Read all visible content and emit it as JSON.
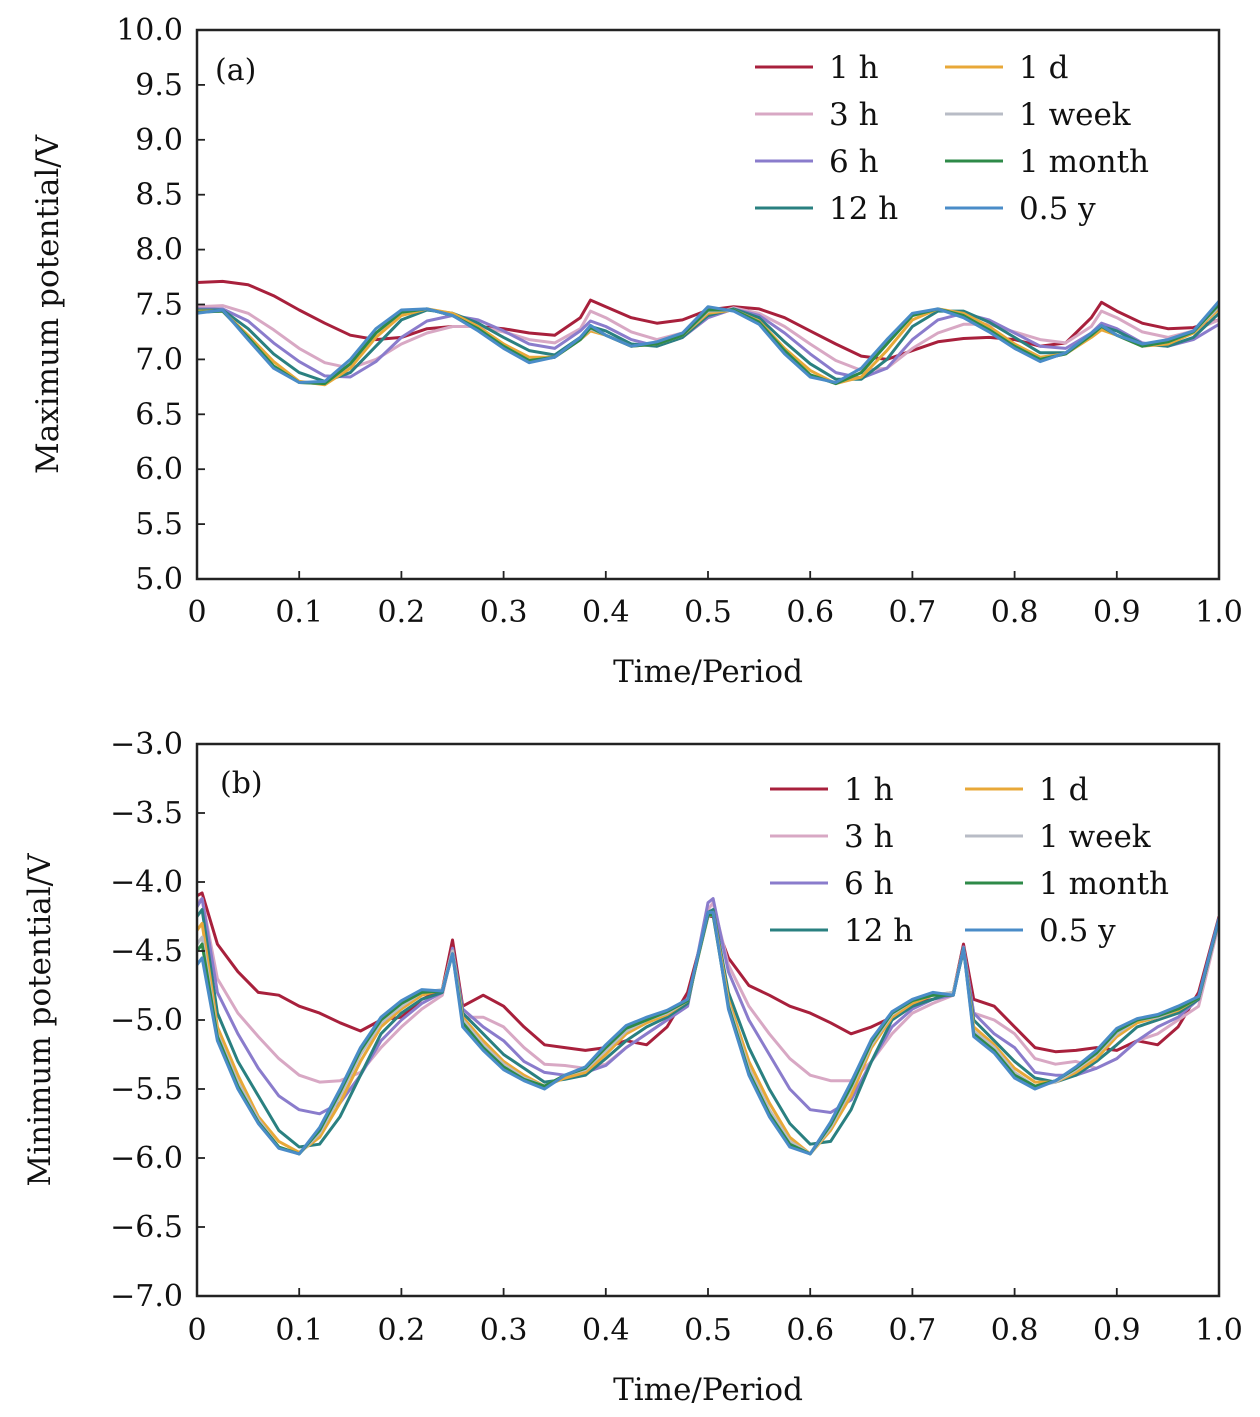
{
  "chart_data": [
    {
      "type": "line",
      "panel_label": "(a)",
      "xlabel": "Time/Period",
      "ylabel": "Maximum potential/V",
      "xlim": [
        0,
        1.0
      ],
      "ylim": [
        5.0,
        10.0
      ],
      "xticks": [
        "0",
        "0.1",
        "0.2",
        "0.3",
        "0.4",
        "0.5",
        "0.6",
        "0.7",
        "0.8",
        "0.9",
        "1.0"
      ],
      "yticks": [
        "5.0",
        "5.5",
        "6.0",
        "6.5",
        "7.0",
        "7.5",
        "8.0",
        "8.5",
        "9.0",
        "9.5",
        "10.0"
      ],
      "legend_position": "top-right",
      "grid": false,
      "x": [
        0,
        0.025,
        0.05,
        0.075,
        0.1,
        0.125,
        0.15,
        0.175,
        0.2,
        0.225,
        0.25,
        0.275,
        0.3,
        0.325,
        0.35,
        0.375,
        0.385,
        0.4,
        0.425,
        0.45,
        0.475,
        0.5,
        0.525,
        0.55,
        0.575,
        0.6,
        0.625,
        0.65,
        0.675,
        0.7,
        0.725,
        0.75,
        0.775,
        0.8,
        0.825,
        0.85,
        0.875,
        0.885,
        0.9,
        0.925,
        0.95,
        0.975,
        1.0
      ],
      "series": [
        {
          "name": "1 h",
          "color": "#a8203c",
          "values": [
            7.7,
            7.71,
            7.68,
            7.58,
            7.45,
            7.33,
            7.22,
            7.18,
            7.2,
            7.28,
            7.3,
            7.3,
            7.28,
            7.24,
            7.22,
            7.38,
            7.54,
            7.48,
            7.38,
            7.33,
            7.36,
            7.45,
            7.48,
            7.46,
            7.38,
            7.26,
            7.14,
            7.03,
            7.0,
            7.08,
            7.16,
            7.19,
            7.2,
            7.18,
            7.12,
            7.15,
            7.38,
            7.52,
            7.44,
            7.33,
            7.28,
            7.29,
            7.36
          ]
        },
        {
          "name": "3 h",
          "color": "#d8a8c4",
          "values": [
            7.48,
            7.49,
            7.42,
            7.27,
            7.1,
            6.97,
            6.92,
            7.0,
            7.14,
            7.24,
            7.3,
            7.3,
            7.25,
            7.18,
            7.15,
            7.28,
            7.44,
            7.38,
            7.25,
            7.18,
            7.24,
            7.4,
            7.47,
            7.42,
            7.3,
            7.14,
            6.99,
            6.9,
            6.92,
            7.1,
            7.24,
            7.32,
            7.32,
            7.25,
            7.18,
            7.15,
            7.3,
            7.44,
            7.38,
            7.25,
            7.2,
            7.26,
            7.36
          ]
        },
        {
          "name": "6 h",
          "color": "#8a7ccc",
          "values": [
            7.46,
            7.46,
            7.35,
            7.15,
            6.98,
            6.85,
            6.84,
            6.98,
            7.2,
            7.35,
            7.4,
            7.36,
            7.26,
            7.14,
            7.1,
            7.26,
            7.35,
            7.3,
            7.18,
            7.12,
            7.2,
            7.38,
            7.46,
            7.4,
            7.24,
            7.05,
            6.88,
            6.83,
            6.92,
            7.18,
            7.36,
            7.42,
            7.36,
            7.24,
            7.12,
            7.1,
            7.24,
            7.33,
            7.28,
            7.15,
            7.12,
            7.18,
            7.32
          ]
        },
        {
          "name": "12 h",
          "color": "#2a8080",
          "values": [
            7.45,
            7.45,
            7.28,
            7.05,
            6.88,
            6.8,
            6.88,
            7.12,
            7.36,
            7.45,
            7.42,
            7.33,
            7.2,
            7.08,
            7.04,
            7.2,
            7.3,
            7.26,
            7.14,
            7.12,
            7.2,
            7.4,
            7.46,
            7.38,
            7.16,
            6.96,
            6.82,
            6.82,
            7.0,
            7.3,
            7.44,
            7.44,
            7.34,
            7.2,
            7.06,
            7.06,
            7.22,
            7.3,
            7.26,
            7.14,
            7.12,
            7.2,
            7.42
          ]
        },
        {
          "name": "1 d",
          "color": "#e8a838",
          "values": [
            7.44,
            7.44,
            7.22,
            6.98,
            6.8,
            6.77,
            6.92,
            7.2,
            7.4,
            7.46,
            7.42,
            7.3,
            7.14,
            7.02,
            7.02,
            7.18,
            7.26,
            7.22,
            7.12,
            7.14,
            7.22,
            7.42,
            7.45,
            7.35,
            7.1,
            6.9,
            6.78,
            6.84,
            7.08,
            7.36,
            7.46,
            7.42,
            7.3,
            7.14,
            7.02,
            7.05,
            7.2,
            7.27,
            7.22,
            7.12,
            7.14,
            7.24,
            7.46
          ]
        },
        {
          "name": "1 week",
          "color": "#b8bcc6",
          "values": [
            7.43,
            7.44,
            7.2,
            6.94,
            6.79,
            6.78,
            6.96,
            7.24,
            7.43,
            7.46,
            7.4,
            7.28,
            7.12,
            6.99,
            7.02,
            7.18,
            7.28,
            7.22,
            7.12,
            7.14,
            7.22,
            7.44,
            7.45,
            7.34,
            7.08,
            6.86,
            6.78,
            6.88,
            7.14,
            7.4,
            7.46,
            7.4,
            7.27,
            7.12,
            7.0,
            7.05,
            7.22,
            7.3,
            7.22,
            7.12,
            7.16,
            7.25,
            7.48
          ]
        },
        {
          "name": "1 month",
          "color": "#2e8a48",
          "values": [
            7.43,
            7.44,
            7.2,
            6.94,
            6.79,
            6.78,
            6.96,
            7.24,
            7.43,
            7.46,
            7.4,
            7.28,
            7.12,
            6.99,
            7.02,
            7.18,
            7.29,
            7.22,
            7.12,
            7.14,
            7.22,
            7.45,
            7.45,
            7.34,
            7.08,
            6.86,
            6.78,
            6.88,
            7.14,
            7.4,
            7.46,
            7.4,
            7.27,
            7.12,
            7.0,
            7.05,
            7.22,
            7.3,
            7.22,
            7.12,
            7.16,
            7.25,
            7.5
          ]
        },
        {
          "name": "0.5 y",
          "color": "#4a8cc8",
          "values": [
            7.42,
            7.45,
            7.18,
            6.92,
            6.79,
            6.8,
            7.0,
            7.28,
            7.45,
            7.46,
            7.4,
            7.26,
            7.1,
            6.97,
            7.02,
            7.2,
            7.31,
            7.22,
            7.12,
            7.16,
            7.24,
            7.48,
            7.44,
            7.32,
            7.05,
            6.84,
            6.79,
            6.92,
            7.18,
            7.42,
            7.46,
            7.38,
            7.25,
            7.1,
            6.98,
            7.06,
            7.24,
            7.31,
            7.22,
            7.14,
            7.18,
            7.26,
            7.53
          ]
        }
      ]
    },
    {
      "type": "line",
      "panel_label": "(b)",
      "xlabel": "Time/Period",
      "ylabel": "Minimum potential/V",
      "xlim": [
        0,
        1.0
      ],
      "ylim": [
        -7.0,
        -3.0
      ],
      "xticks": [
        "0",
        "0.1",
        "0.2",
        "0.3",
        "0.4",
        "0.5",
        "0.6",
        "0.7",
        "0.8",
        "0.9",
        "1.0"
      ],
      "yticks": [
        "−7.0",
        "−6.5",
        "−6.0",
        "−5.5",
        "−5.0",
        "−4.5",
        "−4.0",
        "−3.5",
        "−3.0"
      ],
      "legend_position": "top-right",
      "grid": false,
      "x": [
        0,
        0.005,
        0.02,
        0.04,
        0.06,
        0.08,
        0.1,
        0.12,
        0.14,
        0.16,
        0.18,
        0.2,
        0.22,
        0.24,
        0.25,
        0.26,
        0.28,
        0.3,
        0.32,
        0.34,
        0.36,
        0.38,
        0.4,
        0.42,
        0.44,
        0.46,
        0.48,
        0.5,
        0.505,
        0.52,
        0.54,
        0.56,
        0.58,
        0.6,
        0.62,
        0.64,
        0.66,
        0.68,
        0.7,
        0.72,
        0.74,
        0.75,
        0.76,
        0.78,
        0.8,
        0.82,
        0.84,
        0.86,
        0.88,
        0.9,
        0.92,
        0.94,
        0.96,
        0.98,
        1.0
      ],
      "series": [
        {
          "name": "1 h",
          "color": "#a8203c",
          "values": [
            -4.1,
            -4.08,
            -4.45,
            -4.65,
            -4.8,
            -4.82,
            -4.9,
            -4.95,
            -5.02,
            -5.08,
            -5.0,
            -4.98,
            -4.85,
            -4.78,
            -4.42,
            -4.9,
            -4.82,
            -4.9,
            -5.05,
            -5.18,
            -5.2,
            -5.22,
            -5.2,
            -5.15,
            -5.18,
            -5.05,
            -4.8,
            -4.25,
            -4.25,
            -4.55,
            -4.75,
            -4.82,
            -4.9,
            -4.95,
            -5.02,
            -5.1,
            -5.05,
            -4.98,
            -4.88,
            -4.85,
            -4.8,
            -4.45,
            -4.85,
            -4.9,
            -5.05,
            -5.2,
            -5.23,
            -5.22,
            -5.2,
            -5.22,
            -5.15,
            -5.18,
            -5.05,
            -4.8,
            -4.25
          ]
        },
        {
          "name": "3 h",
          "color": "#d8a8c4",
          "values": [
            -4.15,
            -4.12,
            -4.7,
            -4.95,
            -5.12,
            -5.28,
            -5.4,
            -5.45,
            -5.44,
            -5.38,
            -5.2,
            -5.05,
            -4.92,
            -4.82,
            -4.5,
            -4.98,
            -4.98,
            -5.05,
            -5.2,
            -5.32,
            -5.33,
            -5.35,
            -5.32,
            -5.2,
            -5.1,
            -5.0,
            -4.88,
            -4.2,
            -4.15,
            -4.6,
            -4.9,
            -5.1,
            -5.28,
            -5.4,
            -5.44,
            -5.44,
            -5.3,
            -5.1,
            -4.95,
            -4.88,
            -4.82,
            -4.48,
            -4.95,
            -5.0,
            -5.1,
            -5.28,
            -5.32,
            -5.3,
            -5.35,
            -5.28,
            -5.15,
            -5.1,
            -5.0,
            -4.9,
            -4.3
          ]
        },
        {
          "name": "6 h",
          "color": "#8a7ccc",
          "values": [
            -4.18,
            -4.12,
            -4.8,
            -5.1,
            -5.35,
            -5.55,
            -5.65,
            -5.68,
            -5.6,
            -5.4,
            -5.15,
            -5.0,
            -4.88,
            -4.8,
            -4.48,
            -4.92,
            -5.05,
            -5.15,
            -5.3,
            -5.38,
            -5.4,
            -5.38,
            -5.33,
            -5.2,
            -5.1,
            -5.0,
            -4.9,
            -4.15,
            -4.12,
            -4.65,
            -5.0,
            -5.25,
            -5.5,
            -5.65,
            -5.67,
            -5.58,
            -5.3,
            -5.05,
            -4.92,
            -4.85,
            -4.82,
            -4.47,
            -4.95,
            -5.1,
            -5.2,
            -5.38,
            -5.4,
            -5.4,
            -5.35,
            -5.28,
            -5.15,
            -5.05,
            -4.98,
            -4.85,
            -4.28
          ]
        },
        {
          "name": "12 h",
          "color": "#2a8080",
          "values": [
            -4.25,
            -4.2,
            -4.95,
            -5.3,
            -5.55,
            -5.8,
            -5.92,
            -5.9,
            -5.7,
            -5.4,
            -5.1,
            -4.95,
            -4.85,
            -4.8,
            -4.5,
            -4.95,
            -5.1,
            -5.25,
            -5.35,
            -5.45,
            -5.43,
            -5.4,
            -5.28,
            -5.15,
            -5.05,
            -4.98,
            -4.88,
            -4.22,
            -4.2,
            -4.8,
            -5.2,
            -5.5,
            -5.75,
            -5.9,
            -5.88,
            -5.65,
            -5.3,
            -5.0,
            -4.9,
            -4.85,
            -4.8,
            -4.5,
            -5.0,
            -5.15,
            -5.3,
            -5.42,
            -5.45,
            -5.4,
            -5.3,
            -5.18,
            -5.05,
            -5.0,
            -4.95,
            -4.85,
            -4.27
          ]
        },
        {
          "name": "1 d",
          "color": "#e8a838",
          "values": [
            -4.35,
            -4.3,
            -5.05,
            -5.4,
            -5.7,
            -5.88,
            -5.96,
            -5.85,
            -5.6,
            -5.3,
            -5.05,
            -4.92,
            -4.82,
            -4.78,
            -4.5,
            -4.98,
            -5.15,
            -5.3,
            -5.4,
            -5.48,
            -5.42,
            -5.38,
            -5.25,
            -5.1,
            -5.02,
            -4.96,
            -4.86,
            -4.25,
            -4.22,
            -4.85,
            -5.3,
            -5.6,
            -5.85,
            -5.97,
            -5.8,
            -5.55,
            -5.2,
            -4.98,
            -4.88,
            -4.82,
            -4.8,
            -4.48,
            -5.05,
            -5.18,
            -5.35,
            -5.45,
            -5.45,
            -5.38,
            -5.28,
            -5.12,
            -5.02,
            -4.98,
            -4.93,
            -4.84,
            -4.27
          ]
        },
        {
          "name": "1 week",
          "color": "#b8bcc6",
          "values": [
            -4.45,
            -4.4,
            -5.1,
            -5.45,
            -5.72,
            -5.92,
            -5.97,
            -5.82,
            -5.55,
            -5.25,
            -5.02,
            -4.9,
            -4.8,
            -4.78,
            -4.5,
            -5.0,
            -5.18,
            -5.32,
            -5.42,
            -5.48,
            -5.4,
            -5.36,
            -5.22,
            -5.08,
            -5.0,
            -4.95,
            -4.86,
            -4.25,
            -4.24,
            -4.88,
            -5.35,
            -5.65,
            -5.88,
            -5.97,
            -5.78,
            -5.5,
            -5.18,
            -4.96,
            -4.86,
            -4.82,
            -4.8,
            -4.48,
            -5.08,
            -5.2,
            -5.38,
            -5.48,
            -5.45,
            -5.36,
            -5.25,
            -5.1,
            -5.0,
            -4.98,
            -4.92,
            -4.84,
            -4.27
          ]
        },
        {
          "name": "1 month",
          "color": "#2e8a48",
          "values": [
            -4.5,
            -4.45,
            -5.12,
            -5.48,
            -5.74,
            -5.92,
            -5.97,
            -5.8,
            -5.52,
            -5.22,
            -5.0,
            -4.88,
            -4.8,
            -4.79,
            -4.52,
            -5.02,
            -5.2,
            -5.34,
            -5.43,
            -5.48,
            -5.4,
            -5.35,
            -5.2,
            -5.06,
            -5.0,
            -4.94,
            -4.86,
            -4.24,
            -4.24,
            -4.9,
            -5.38,
            -5.68,
            -5.9,
            -5.97,
            -5.76,
            -5.48,
            -5.16,
            -4.95,
            -4.86,
            -4.82,
            -4.82,
            -4.48,
            -5.1,
            -5.22,
            -5.4,
            -5.48,
            -5.44,
            -5.35,
            -5.24,
            -5.08,
            -5.0,
            -4.97,
            -4.92,
            -4.84,
            -4.27
          ]
        },
        {
          "name": "0.5 y",
          "color": "#4a8cc8",
          "values": [
            -4.6,
            -4.55,
            -5.15,
            -5.5,
            -5.75,
            -5.93,
            -5.97,
            -5.78,
            -5.5,
            -5.2,
            -4.98,
            -4.86,
            -4.78,
            -4.79,
            -4.52,
            -5.05,
            -5.22,
            -5.36,
            -5.44,
            -5.5,
            -5.4,
            -5.34,
            -5.18,
            -5.04,
            -4.98,
            -4.93,
            -4.85,
            -4.22,
            -4.22,
            -4.92,
            -5.4,
            -5.7,
            -5.92,
            -5.97,
            -5.74,
            -5.45,
            -5.14,
            -4.94,
            -4.85,
            -4.8,
            -4.82,
            -4.48,
            -5.12,
            -5.24,
            -5.42,
            -5.5,
            -5.44,
            -5.34,
            -5.22,
            -5.06,
            -4.99,
            -4.96,
            -4.9,
            -4.83,
            -4.26
          ]
        }
      ]
    }
  ]
}
